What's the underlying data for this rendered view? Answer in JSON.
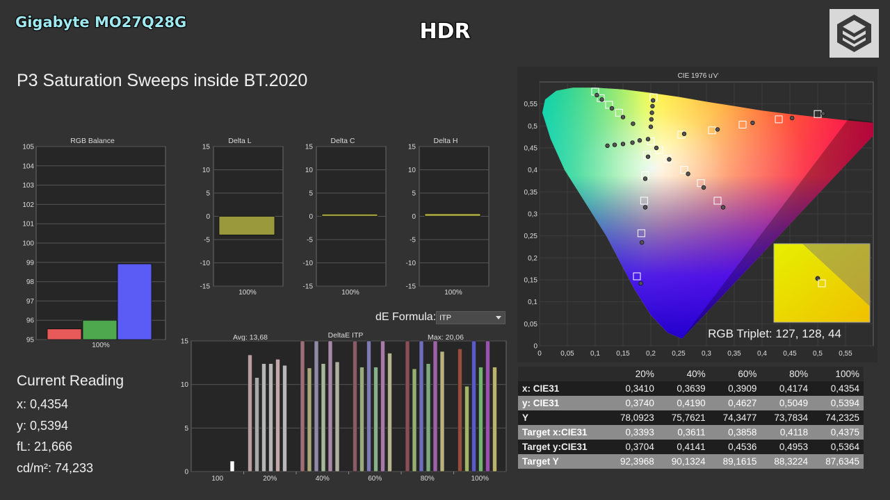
{
  "header": {
    "brand": "Gigabyte MO27Q28G",
    "mode": "HDR",
    "title": "P3 Saturation Sweeps inside BT.2020"
  },
  "current_reading": {
    "title": "Current Reading",
    "x_label": "x: 0,4354",
    "y_label": "y: 0,5394",
    "fl_label": "fL: 21,666",
    "cd_label": "cd/m²: 74,233"
  },
  "de_formula": {
    "label": "dE Formula:",
    "value": "ITP"
  },
  "colors": {
    "red": "#e85a5a",
    "green": "#4ea84e",
    "blue": "#5b5bf5",
    "delta": "#9a9a3c",
    "bg": "#323232",
    "plot": "#262626"
  },
  "chart_data": [
    {
      "type": "bar",
      "title": "RGB Balance",
      "categories": [
        "R",
        "G",
        "B"
      ],
      "values": [
        95.55,
        96.0,
        98.92
      ],
      "xlabel": "100%",
      "ylim": [
        95,
        105
      ],
      "yticks": [
        "95",
        "96",
        "97",
        "98",
        "99",
        "100",
        "101",
        "102",
        "103",
        "104",
        "105"
      ]
    },
    {
      "type": "bar",
      "title": "Delta L",
      "values": [
        -4.0
      ],
      "xlabel": "100%",
      "ylim": [
        -15,
        15
      ],
      "yticks": [
        "-15",
        "-10",
        "-5",
        "0",
        "5",
        "10",
        "15"
      ]
    },
    {
      "type": "bar",
      "title": "Delta C",
      "values": [
        0.5
      ],
      "xlabel": "100%",
      "ylim": [
        -15,
        15
      ],
      "yticks": [
        "-15",
        "-10",
        "-5",
        "0",
        "5",
        "10",
        "15"
      ]
    },
    {
      "type": "bar",
      "title": "Delta H",
      "values": [
        0.6
      ],
      "xlabel": "100%",
      "ylim": [
        -15,
        15
      ],
      "yticks": [
        "-15",
        "-10",
        "-5",
        "0",
        "5",
        "10",
        "15"
      ]
    },
    {
      "type": "bar",
      "title": "DeltaE ITP",
      "avg_label": "Avg: 13,68",
      "max_label": "Max: 20,06",
      "categories": [
        "100",
        "20%",
        "40%",
        "60%",
        "80%",
        "100%"
      ],
      "ylim": [
        0,
        15
      ],
      "yticks": [
        "0",
        "5",
        "10",
        "15"
      ],
      "groups": [
        {
          "values": [
            1.2
          ],
          "colors": [
            "#ffffff"
          ]
        },
        {
          "values": [
            13.4,
            10.8,
            12.4,
            12.4,
            12.9,
            12.2
          ],
          "colors": [
            "#b89ea0",
            "#a8a8a8",
            "#b6b6b6",
            "#b6b6b6",
            "#c2a8a8",
            "#b8b8b8"
          ]
        },
        {
          "values": [
            15,
            11.9,
            15,
            12.4,
            15,
            12.6
          ],
          "colors": [
            "#9c6e78",
            "#a8a87a",
            "#8e8aa8",
            "#a8b89a",
            "#a88aa8",
            "#b0b0a0"
          ]
        },
        {
          "values": [
            15,
            12.0,
            15,
            12.0,
            15,
            13.6
          ],
          "colors": [
            "#8a5a66",
            "#9aaa7e",
            "#7e7ab4",
            "#88b08a",
            "#a87aa8",
            "#b6b48e"
          ]
        },
        {
          "values": [
            15,
            11.8,
            15,
            12.4,
            15,
            13.8
          ],
          "colors": [
            "#8a4e58",
            "#96ae72",
            "#6e6ebc",
            "#7cac7e",
            "#9e62a8",
            "#b8b27e"
          ]
        },
        {
          "values": [
            14.1,
            9.8,
            15,
            12.0,
            15,
            12.0
          ],
          "colors": [
            "#964e3c",
            "#a2b466",
            "#5a5ac8",
            "#72b472",
            "#9a52b0",
            "#bcb46a"
          ]
        }
      ]
    },
    {
      "type": "scatter",
      "title": "CIE 1976 u'v'",
      "xlim": [
        0,
        0.6
      ],
      "ylim": [
        0,
        0.6
      ],
      "xticks": [
        "0",
        "0,05",
        "0,1",
        "0,15",
        "0,2",
        "0,25",
        "0,3",
        "0,35",
        "0,4",
        "0,45",
        "0,5",
        "0,55"
      ],
      "yticks": [
        "0",
        "0,05",
        "0,1",
        "0,15",
        "0,2",
        "0,25",
        "0,3",
        "0,35",
        "0,4",
        "0,45",
        "0,5",
        "0,55"
      ],
      "targets": [
        [
          0.1,
          0.578
        ],
        [
          0.11,
          0.563
        ],
        [
          0.125,
          0.548
        ],
        [
          0.143,
          0.53
        ],
        [
          0.2,
          0.465
        ],
        [
          0.215,
          0.445
        ],
        [
          0.23,
          0.425
        ],
        [
          0.255,
          0.48
        ],
        [
          0.26,
          0.4
        ],
        [
          0.29,
          0.37
        ],
        [
          0.31,
          0.49
        ],
        [
          0.32,
          0.33
        ],
        [
          0.365,
          0.503
        ],
        [
          0.43,
          0.515
        ],
        [
          0.5,
          0.527
        ],
        [
          0.205,
          0.565
        ],
        [
          0.193,
          0.434
        ],
        [
          0.19,
          0.388
        ],
        [
          0.188,
          0.33
        ],
        [
          0.183,
          0.256
        ],
        [
          0.175,
          0.158
        ]
      ],
      "measured": [
        [
          0.103,
          0.57
        ],
        [
          0.112,
          0.56
        ],
        [
          0.13,
          0.54
        ],
        [
          0.15,
          0.52
        ],
        [
          0.168,
          0.505
        ],
        [
          0.122,
          0.455
        ],
        [
          0.135,
          0.457
        ],
        [
          0.15,
          0.459
        ],
        [
          0.167,
          0.462
        ],
        [
          0.18,
          0.467
        ],
        [
          0.195,
          0.47
        ],
        [
          0.21,
          0.45
        ],
        [
          0.233,
          0.424
        ],
        [
          0.26,
          0.482
        ],
        [
          0.267,
          0.391
        ],
        [
          0.295,
          0.36
        ],
        [
          0.32,
          0.492
        ],
        [
          0.33,
          0.315
        ],
        [
          0.383,
          0.507
        ],
        [
          0.454,
          0.518
        ],
        [
          0.51,
          0.528
        ],
        [
          0.2,
          0.498
        ],
        [
          0.201,
          0.515
        ],
        [
          0.202,
          0.53
        ],
        [
          0.203,
          0.545
        ],
        [
          0.204,
          0.558
        ],
        [
          0.195,
          0.43
        ],
        [
          0.19,
          0.38
        ],
        [
          0.19,
          0.315
        ],
        [
          0.184,
          0.235
        ],
        [
          0.182,
          0.142
        ]
      ],
      "inset_label": "RGB Triplet: 127, 128, 44"
    }
  ],
  "table": {
    "headers": [
      "",
      "20%",
      "40%",
      "60%",
      "80%",
      "100%"
    ],
    "rows": [
      {
        "label": "x: CIE31",
        "values": [
          "0,3410",
          "0,3639",
          "0,3909",
          "0,4174",
          "0,4354"
        ]
      },
      {
        "label": "y: CIE31",
        "values": [
          "0,3740",
          "0,4190",
          "0,4627",
          "0,5049",
          "0,5394"
        ]
      },
      {
        "label": "Y",
        "values": [
          "78,0923",
          "75,7621",
          "74,3477",
          "73,7834",
          "74,2325"
        ]
      },
      {
        "label": "Target x:CIE31",
        "values": [
          "0,3393",
          "0,3611",
          "0,3858",
          "0,4118",
          "0,4375"
        ]
      },
      {
        "label": "Target y:CIE31",
        "values": [
          "0,3704",
          "0,4141",
          "0,4536",
          "0,4953",
          "0,5364"
        ]
      },
      {
        "label": "Target Y",
        "values": [
          "92,3968",
          "90,1324",
          "89,1615",
          "88,3224",
          "87,6345"
        ]
      }
    ]
  }
}
